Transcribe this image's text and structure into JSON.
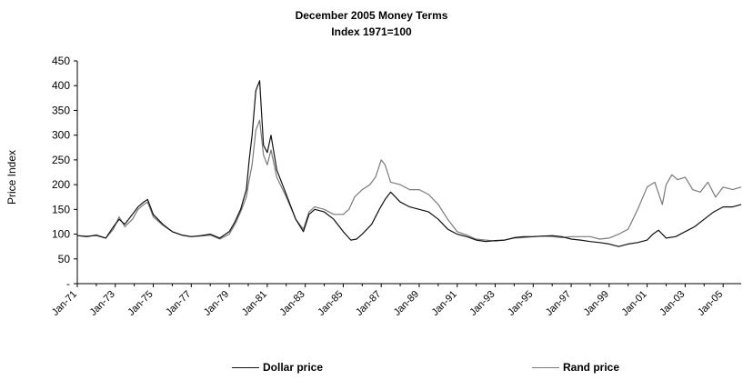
{
  "chart_data": {
    "type": "line",
    "title": "December 2005 Money Terms",
    "subtitle": "Index 1971=100",
    "xlabel": "",
    "ylabel": "Price Index",
    "ylim": [
      0,
      450
    ],
    "yticks": [
      "-",
      "50",
      "100",
      "150",
      "200",
      "250",
      "300",
      "350",
      "400",
      "450"
    ],
    "xlim": [
      1971.0,
      2005.95
    ],
    "xticks": [
      "Jan-71",
      "Jan-73",
      "Jan-75",
      "Jan-77",
      "Jan-79",
      "Jan-81",
      "Jan-83",
      "Jan-85",
      "Jan-87",
      "Jan-89",
      "Jan-91",
      "Jan-93",
      "Jan-95",
      "Jan-97",
      "Jan-99",
      "Jan-01",
      "Jan-03",
      "Jan-05"
    ],
    "legend_position": "bottom",
    "grid": false,
    "series": [
      {
        "name": "Dollar price",
        "color": "#111111",
        "x": [
          1971.0,
          1971.5,
          1972.0,
          1972.5,
          1972.9,
          1973.2,
          1973.5,
          1973.9,
          1974.2,
          1974.5,
          1974.7,
          1975.0,
          1975.5,
          1976.0,
          1976.5,
          1977.0,
          1977.5,
          1978.0,
          1978.5,
          1979.0,
          1979.3,
          1979.6,
          1979.9,
          1980.05,
          1980.2,
          1980.4,
          1980.6,
          1980.8,
          1981.0,
          1981.2,
          1981.5,
          1982.0,
          1982.5,
          1982.9,
          1983.2,
          1983.5,
          1984.0,
          1984.5,
          1985.0,
          1985.4,
          1985.7,
          1986.0,
          1986.5,
          1986.9,
          1987.2,
          1987.5,
          1988.0,
          1988.5,
          1989.0,
          1989.5,
          1990.0,
          1990.5,
          1991.0,
          1991.5,
          1992.0,
          1992.5,
          1993.0,
          1993.5,
          1994.0,
          1994.5,
          1995.0,
          1995.5,
          1996.0,
          1996.5,
          1997.0,
          1997.5,
          1998.0,
          1998.5,
          1999.0,
          1999.5,
          2000.0,
          2000.5,
          2001.0,
          2001.3,
          2001.6,
          2002.0,
          2002.5,
          2003.0,
          2003.5,
          2004.0,
          2004.5,
          2005.0,
          2005.5,
          2005.95
        ],
        "values": [
          97,
          95,
          98,
          92,
          115,
          130,
          120,
          140,
          155,
          165,
          170,
          140,
          120,
          105,
          98,
          95,
          97,
          100,
          92,
          105,
          125,
          150,
          190,
          250,
          300,
          390,
          410,
          280,
          265,
          300,
          230,
          180,
          130,
          105,
          140,
          150,
          145,
          130,
          105,
          88,
          90,
          100,
          120,
          150,
          170,
          185,
          165,
          155,
          150,
          145,
          130,
          110,
          100,
          95,
          88,
          85,
          87,
          88,
          93,
          95,
          95,
          96,
          97,
          95,
          90,
          88,
          85,
          83,
          80,
          75,
          80,
          83,
          88,
          100,
          108,
          92,
          95,
          105,
          115,
          130,
          145,
          155,
          155,
          160
        ]
      },
      {
        "name": "Rand price",
        "color": "#7a7a7a",
        "x": [
          1971.0,
          1971.5,
          1972.0,
          1972.5,
          1972.9,
          1973.2,
          1973.5,
          1973.9,
          1974.2,
          1974.5,
          1974.7,
          1975.0,
          1975.5,
          1976.0,
          1976.5,
          1977.0,
          1977.5,
          1978.0,
          1978.5,
          1979.0,
          1979.3,
          1979.6,
          1979.9,
          1980.05,
          1980.2,
          1980.4,
          1980.6,
          1980.8,
          1981.0,
          1981.2,
          1981.5,
          1982.0,
          1982.5,
          1982.9,
          1983.2,
          1983.5,
          1984.0,
          1984.5,
          1985.0,
          1985.3,
          1985.6,
          1986.0,
          1986.4,
          1986.7,
          1987.0,
          1987.2,
          1987.5,
          1988.0,
          1988.5,
          1989.0,
          1989.5,
          1990.0,
          1990.5,
          1991.0,
          1991.5,
          1992.0,
          1992.5,
          1993.0,
          1993.5,
          1994.0,
          1994.5,
          1995.0,
          1995.5,
          1996.0,
          1996.5,
          1997.0,
          1997.5,
          1998.0,
          1998.5,
          1999.0,
          1999.5,
          2000.0,
          2000.5,
          2001.0,
          2001.4,
          2001.8,
          2002.0,
          2002.3,
          2002.6,
          2003.0,
          2003.4,
          2003.8,
          2004.2,
          2004.6,
          2005.0,
          2005.5,
          2005.95
        ],
        "values": [
          97,
          96,
          97,
          92,
          110,
          135,
          115,
          130,
          150,
          160,
          165,
          135,
          118,
          105,
          98,
          95,
          96,
          98,
          90,
          100,
          120,
          145,
          175,
          210,
          240,
          310,
          330,
          260,
          240,
          270,
          215,
          175,
          130,
          110,
          145,
          155,
          150,
          140,
          140,
          150,
          175,
          190,
          200,
          215,
          250,
          240,
          205,
          200,
          190,
          190,
          180,
          160,
          130,
          105,
          98,
          90,
          88,
          86,
          88,
          92,
          93,
          95,
          96,
          95,
          93,
          95,
          95,
          95,
          90,
          92,
          100,
          110,
          150,
          195,
          205,
          160,
          200,
          220,
          210,
          215,
          190,
          185,
          205,
          175,
          195,
          190,
          195
        ]
      }
    ]
  }
}
